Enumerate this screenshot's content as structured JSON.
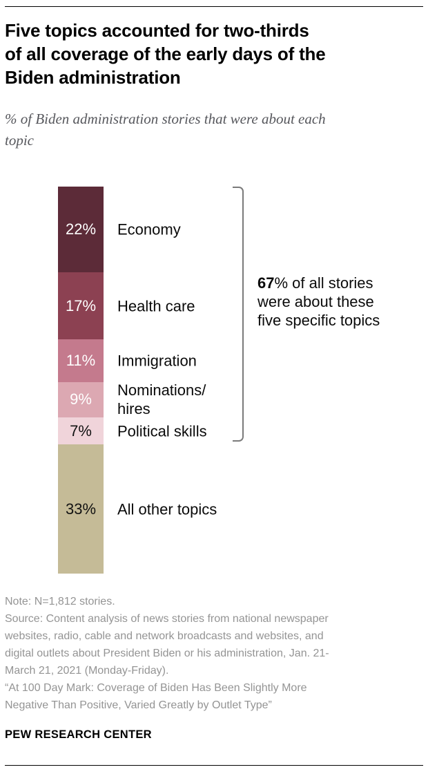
{
  "header": {
    "title": "Five topics accounted for two-thirds\nof all coverage of the early days of the\nBiden administration",
    "subtitle": "% of Biden administration stories that were about each\ntopic"
  },
  "chart_data": {
    "type": "bar",
    "variant": "single-stacked-column",
    "title": "Five topics accounted for two-thirds of all coverage of the early days of the Biden administration",
    "subtitle": "% of Biden administration stories that were about each topic",
    "unit": "%",
    "categories": [
      "Economy",
      "Health care",
      "Immigration",
      "Nominations/hires",
      "Political skills",
      "All other topics"
    ],
    "categories_display": [
      "Economy",
      "Health care",
      "Immigration",
      "Nominations/\nhires",
      "Political skills",
      "All other topics"
    ],
    "ids": [
      "economy",
      "health-care",
      "immigration",
      "nominations-hires",
      "political-skills",
      "all-other-topics"
    ],
    "values": [
      22,
      17,
      11,
      9,
      7,
      33
    ],
    "colors": [
      "#5c2b38",
      "#8c4152",
      "#c47a8d",
      "#dca8b2",
      "#f0d4da",
      "#c5bb97"
    ],
    "value_label_colors": [
      "#ffffff",
      "#ffffff",
      "#ffffff",
      "#ffffff",
      "#121212",
      "#121212"
    ],
    "highlighted_total": 67,
    "grid": false,
    "legend_position": "none"
  },
  "annotation": {
    "bold": "67",
    "rest": "% of all stories\nwere about these\nfive specific topics"
  },
  "footer": {
    "note": "Note: N=1,812 stories.",
    "source": "Source: Content analysis of news stories from national newspaper\nwebsites, radio, cable and network broadcasts and websites, and\ndigital outlets about President Biden or his administration, Jan. 21-\nMarch 21, 2021 (Monday-Friday).",
    "report": "“At 100 Day Mark: Coverage of Biden Has Been Slightly More\nNegative Than Positive, Varied Greatly by Outlet Type”",
    "brand": "PEW RESEARCH CENTER"
  }
}
